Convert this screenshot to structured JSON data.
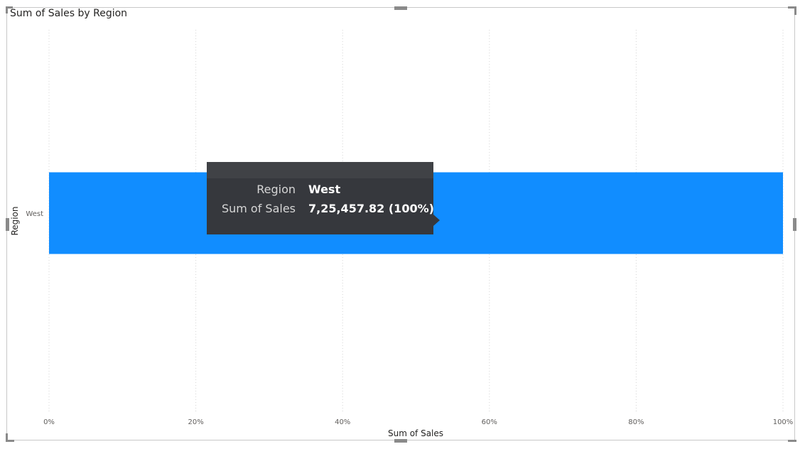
{
  "chart_data": {
    "type": "bar",
    "orientation": "horizontal",
    "stacking": "100%",
    "title": "Sum of Sales by Region",
    "xlabel": "Sum of Sales",
    "ylabel": "Region",
    "categories": [
      "West"
    ],
    "series": [
      {
        "values": [
          100
        ]
      }
    ],
    "xlim": [
      0,
      100
    ],
    "xticks": [
      "0%",
      "20%",
      "40%",
      "60%",
      "80%",
      "100%"
    ],
    "grid": "vertical dotted",
    "bar_color": "#118DFF"
  },
  "tooltip": {
    "rows": [
      {
        "key": "Region",
        "value": "West"
      },
      {
        "key": "Sum of Sales",
        "value": "7,25,457.82 (100%)"
      }
    ]
  }
}
